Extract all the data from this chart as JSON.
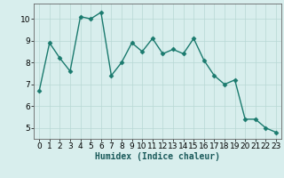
{
  "x": [
    0,
    1,
    2,
    3,
    4,
    5,
    6,
    7,
    8,
    9,
    10,
    11,
    12,
    13,
    14,
    15,
    16,
    17,
    18,
    19,
    20,
    21,
    22,
    23
  ],
  "y": [
    6.7,
    8.9,
    8.2,
    7.6,
    10.1,
    10.0,
    10.3,
    7.4,
    8.0,
    8.9,
    8.5,
    9.1,
    8.4,
    8.6,
    8.4,
    9.1,
    8.1,
    7.4,
    7.0,
    7.2,
    5.4,
    5.4,
    5.0,
    4.8
  ],
  "line_color": "#1a7a6e",
  "marker": "D",
  "marker_size": 2.5,
  "line_width": 1.0,
  "xlabel": "Humidex (Indice chaleur)",
  "background_color": "#d8eeed",
  "grid_color": "#b8d8d4",
  "xlim": [
    -0.5,
    23.5
  ],
  "ylim": [
    4.5,
    10.7
  ],
  "yticks": [
    5,
    6,
    7,
    8,
    9,
    10
  ],
  "xticks": [
    0,
    1,
    2,
    3,
    4,
    5,
    6,
    7,
    8,
    9,
    10,
    11,
    12,
    13,
    14,
    15,
    16,
    17,
    18,
    19,
    20,
    21,
    22,
    23
  ],
  "xlabel_fontsize": 7,
  "tick_fontsize": 6.5,
  "spine_color": "#666666"
}
